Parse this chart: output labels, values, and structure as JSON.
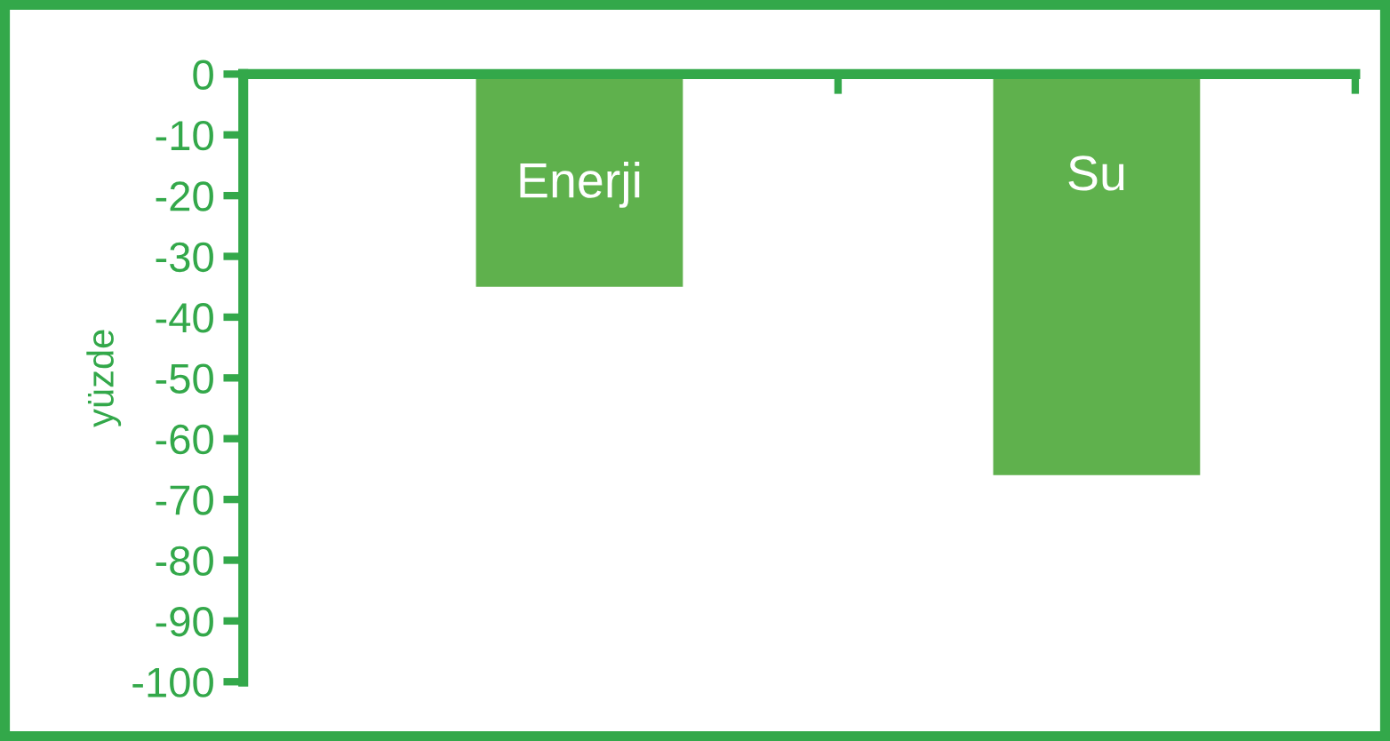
{
  "chart_data": {
    "type": "bar",
    "ylabel": "yüzde",
    "categories": [
      "Enerji",
      "Su"
    ],
    "values": [
      -35,
      -66
    ],
    "color": "#5fb14d",
    "ylim": [
      -100,
      0
    ],
    "yticks": [
      0,
      -10,
      -20,
      -30,
      -40,
      -50,
      -60,
      -70,
      -80,
      -90,
      -100
    ],
    "grid": false
  }
}
